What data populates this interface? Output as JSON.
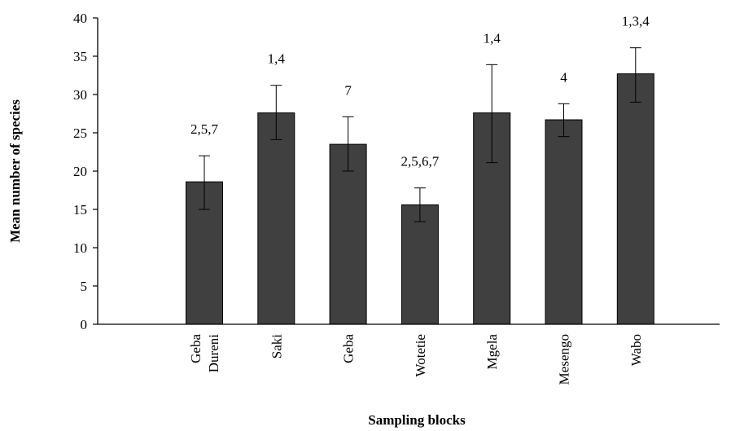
{
  "chart_data": {
    "type": "bar",
    "title": "",
    "xlabel": "Sampling blocks",
    "ylabel": "Mean number of species",
    "ylim": [
      0,
      40
    ],
    "yticks": [
      0,
      5,
      10,
      15,
      20,
      25,
      30,
      35,
      40
    ],
    "grid": false,
    "legend": "none",
    "bar_color": "#404040",
    "categories": [
      {
        "lines": [
          "Geba",
          "Dureni"
        ]
      },
      {
        "lines": [
          "Saki"
        ]
      },
      {
        "lines": [
          "Geba"
        ]
      },
      {
        "lines": [
          "Wotetie"
        ]
      },
      {
        "lines": [
          "Mgela"
        ]
      },
      {
        "lines": [
          "Mesengo"
        ]
      },
      {
        "lines": [
          "Wabo"
        ]
      }
    ],
    "values": [
      18.6,
      27.6,
      23.5,
      15.6,
      27.6,
      26.7,
      32.7
    ],
    "error_low": [
      15.0,
      24.1,
      20.0,
      13.4,
      21.1,
      24.5,
      29.0
    ],
    "error_high": [
      22.0,
      31.2,
      27.1,
      17.8,
      33.9,
      28.8,
      36.1
    ],
    "annotations": [
      "2,5,7",
      "1,4",
      "7",
      "2,5,6,7",
      "1,4",
      "4",
      "1,3,4"
    ]
  }
}
